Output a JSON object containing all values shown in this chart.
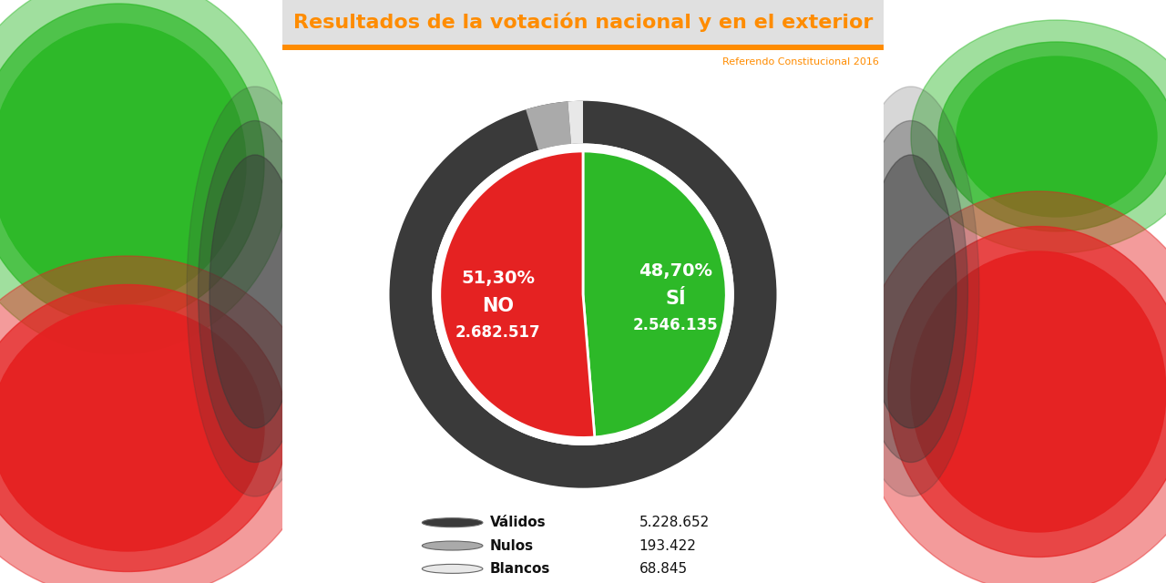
{
  "title": "Resultados de la votación nacional y en el exterior",
  "subtitle": "Referendo Constitucional 2016",
  "title_color": "#FF8C00",
  "subtitle_color": "#FF8C00",
  "title_bg_color": "#E0E0E0",
  "title_bar_color": "#FF8C00",
  "bg_color": "#FFFFFF",
  "blurred_bg_green": "#2DB928",
  "blurred_bg_red": "#E52222",
  "blurred_bg_dark": "#3A3A3A",
  "si_pct": 48.7,
  "no_pct": 51.3,
  "si_label": "SÍ",
  "no_label": "NO",
  "si_value": "2.546.135",
  "no_value": "2.682.517",
  "si_color": "#2DB928",
  "no_color": "#E52222",
  "ring_color": "#3A3A3A",
  "legend_items": [
    {
      "label": "Válidos",
      "value": "5.228.652",
      "color": "#3A3A3A"
    },
    {
      "label": "Nulos",
      "value": "193.422",
      "color": "#AAAAAA"
    },
    {
      "label": "Blancos",
      "value": "68.845",
      "color": "#E8E8E8"
    }
  ],
  "text_color_white": "#FFFFFF",
  "text_color_dark": "#222222",
  "font_size_pct": 14,
  "font_size_label": 15,
  "font_size_value": 12,
  "font_size_title": 16,
  "font_size_subtitle": 8,
  "font_size_legend": 11
}
